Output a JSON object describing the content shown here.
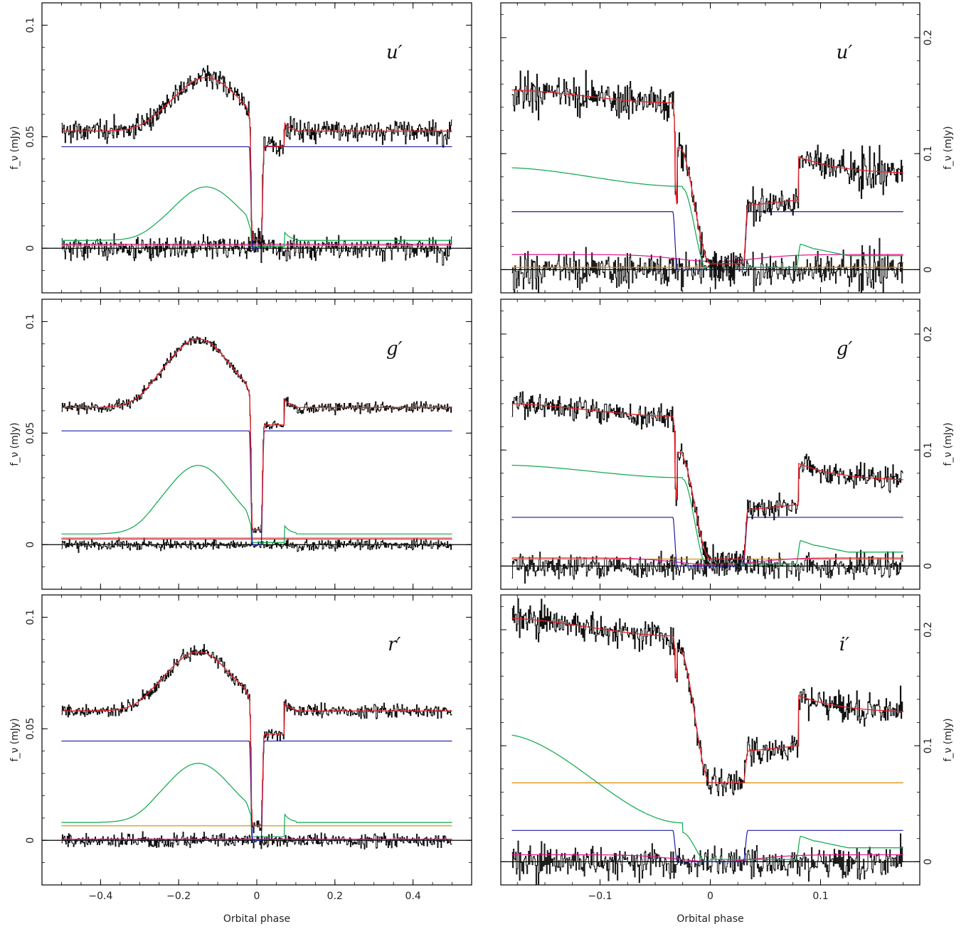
{
  "figure": {
    "xlabel_left": "Orbital phase",
    "xlabel_right": "Orbital phase",
    "ylabel": "f_ν (mJy)"
  },
  "colors": {
    "data": "#111111",
    "total_model": "#e8202a",
    "white_dwarf": "#1c1ca8",
    "bright_spot": "#0aa84a",
    "disc": "#e0138c",
    "secondary": "#d98a00",
    "zero_line": "#000000"
  },
  "chart_data": [
    {
      "id": "left-u",
      "type": "line",
      "band": "u′",
      "xlim": [
        -0.55,
        0.55
      ],
      "ylim": [
        -0.02,
        0.11
      ],
      "xticks": [
        -0.4,
        -0.2,
        0,
        0.2,
        0.4
      ],
      "xticklabels": [
        "",
        "",
        "",
        "",
        ""
      ],
      "yticks": [
        0,
        0.05,
        0.1
      ],
      "yticklabels": [
        "0",
        "0.05",
        "0.1"
      ],
      "yaxis_side": "left",
      "ylabel": "f_ν (mJy)",
      "xlabel": "",
      "model": {
        "wd": 0.0455,
        "spot_peak": 0.0275,
        "spot_phase": -0.13,
        "spot_base": 0.0035,
        "disc": 0.0018,
        "secondary": 0.0012,
        "baseline": 0.0525,
        "noise": 0.0045,
        "eclipse_half_width": 0.015,
        "egress_spot_phase": 0.07
      }
    },
    {
      "id": "right-u",
      "type": "line",
      "band": "u′",
      "xlim": [
        -0.19,
        0.19
      ],
      "ylim": [
        -0.02,
        0.23
      ],
      "xticks": [
        -0.1,
        0,
        0.1
      ],
      "xticklabels": [
        "",
        "",
        ""
      ],
      "yticks": [
        0,
        0.1,
        0.2
      ],
      "yticklabels": [
        "0",
        "0.1",
        "0.2"
      ],
      "yaxis_side": "right",
      "ylabel": "f_ν (mJy)",
      "xlabel": "",
      "model": {
        "wd": 0.05,
        "spot_start": 0.088,
        "spot_end": 0.07,
        "disc": 0.013,
        "secondary": 0.002,
        "pre_level": 0.155,
        "post_level": 0.082,
        "mid_level": 0.065,
        "min_level": 0.005,
        "noise": 0.012
      }
    },
    {
      "id": "left-g",
      "type": "line",
      "band": "g′",
      "xlim": [
        -0.55,
        0.55
      ],
      "ylim": [
        -0.02,
        0.11
      ],
      "xticks": [
        -0.4,
        -0.2,
        0,
        0.2,
        0.4
      ],
      "xticklabels": [
        "",
        "",
        "",
        "",
        ""
      ],
      "yticks": [
        0,
        0.05,
        0.1
      ],
      "yticklabels": [
        "0",
        "0.05",
        "0.1"
      ],
      "yaxis_side": "left",
      "ylabel": "f_ν (mJy)",
      "xlabel": "",
      "model": {
        "wd": 0.051,
        "spot_peak": 0.0355,
        "spot_phase": -0.15,
        "spot_base": 0.0048,
        "disc": 0.0025,
        "secondary": 0.003,
        "baseline": 0.0615,
        "noise": 0.002,
        "eclipse_half_width": 0.015,
        "egress_spot_phase": 0.07
      }
    },
    {
      "id": "right-g",
      "type": "line",
      "band": "g′",
      "xlim": [
        -0.19,
        0.19
      ],
      "ylim": [
        -0.02,
        0.23
      ],
      "xticks": [
        -0.1,
        0,
        0.1
      ],
      "xticklabels": [
        "",
        "",
        ""
      ],
      "yticks": [
        0,
        0.1,
        0.2
      ],
      "yticklabels": [
        "0",
        "0.1",
        "0.2"
      ],
      "yaxis_side": "right",
      "ylabel": "f_ν (mJy)",
      "xlabel": "",
      "model": {
        "wd": 0.042,
        "spot_start": 0.087,
        "spot_end": 0.075,
        "disc": 0.007,
        "secondary": 0.006,
        "pre_level": 0.14,
        "post_level": 0.073,
        "mid_level": 0.055,
        "min_level": 0.006,
        "noise": 0.008
      }
    },
    {
      "id": "left-r",
      "type": "line",
      "band": "r′",
      "xlim": [
        -0.55,
        0.55
      ],
      "ylim": [
        -0.02,
        0.11
      ],
      "xticks": [
        -0.4,
        -0.2,
        0,
        0.2,
        0.4
      ],
      "xticklabels": [
        "−0.4",
        "−0.2",
        "0",
        "0.2",
        "0.4"
      ],
      "yticks": [
        0,
        0.05,
        0.1
      ],
      "yticklabels": [
        "0",
        "0.05",
        "0.1"
      ],
      "yaxis_side": "left",
      "ylabel": "f_ν (mJy)",
      "xlabel": "Orbital phase",
      "model": {
        "wd": 0.0445,
        "spot_peak": 0.0345,
        "spot_phase": -0.15,
        "spot_base": 0.008,
        "disc": 0.0005,
        "secondary": 0.0065,
        "baseline": 0.058,
        "noise": 0.0025,
        "eclipse_half_width": 0.015,
        "egress_spot_phase": 0.07
      }
    },
    {
      "id": "right-i",
      "type": "line",
      "band": "i′",
      "xlim": [
        -0.19,
        0.19
      ],
      "ylim": [
        -0.02,
        0.23
      ],
      "xticks": [
        -0.1,
        0,
        0.1
      ],
      "xticklabels": [
        "−0.1",
        "0",
        "0.1"
      ],
      "yticks": [
        0,
        0.1,
        0.2
      ],
      "yticklabels": [
        "0",
        "0.1",
        "0.2"
      ],
      "yaxis_side": "right",
      "ylabel": "f_ν (mJy)",
      "xlabel": "Orbital phase",
      "model": {
        "wd": 0.027,
        "spot_start": 0.11,
        "spot_end": 0.025,
        "disc": 0.006,
        "secondary": 0.068,
        "pre_level": 0.21,
        "post_level": 0.128,
        "mid_level": 0.1,
        "min_level": 0.068,
        "noise": 0.01
      }
    }
  ]
}
